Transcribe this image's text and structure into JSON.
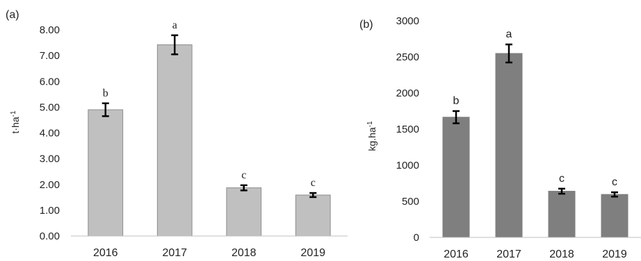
{
  "chart_data": [
    {
      "type": "bar",
      "panel_label": "(a)",
      "categories": [
        "2016",
        "2017",
        "2018",
        "2019"
      ],
      "values": [
        4.9,
        7.42,
        1.87,
        1.59
      ],
      "error": [
        0.25,
        0.37,
        0.1,
        0.08
      ],
      "significance_letters": [
        "b",
        "a",
        "c",
        "c"
      ],
      "ylabel_base": "t·ha",
      "ylabel_sup": "-1",
      "yticks": [
        "0.00",
        "1.00",
        "2.00",
        "3.00",
        "4.00",
        "5.00",
        "6.00",
        "7.00",
        "8.00"
      ],
      "ylim": [
        0,
        8
      ],
      "bar_color": "#c0c0c0",
      "bar_edge_color": "#8c8c8c",
      "grid": false
    },
    {
      "type": "bar",
      "panel_label": "(b)",
      "categories": [
        "2016",
        "2017",
        "2018",
        "2019"
      ],
      "values": [
        1665,
        2548,
        640,
        595
      ],
      "error": [
        85,
        125,
        35,
        30
      ],
      "significance_letters": [
        "b",
        "a",
        "c",
        "c"
      ],
      "ylabel_base": "kg.ha",
      "ylabel_sup": "-1",
      "yticks": [
        "0",
        "500",
        "1000",
        "1500",
        "2000",
        "2500",
        "3000"
      ],
      "ylim": [
        0,
        3000
      ],
      "bar_color": "#7f7f7f",
      "bar_edge_color": "#7f7f7f",
      "grid": false
    }
  ]
}
